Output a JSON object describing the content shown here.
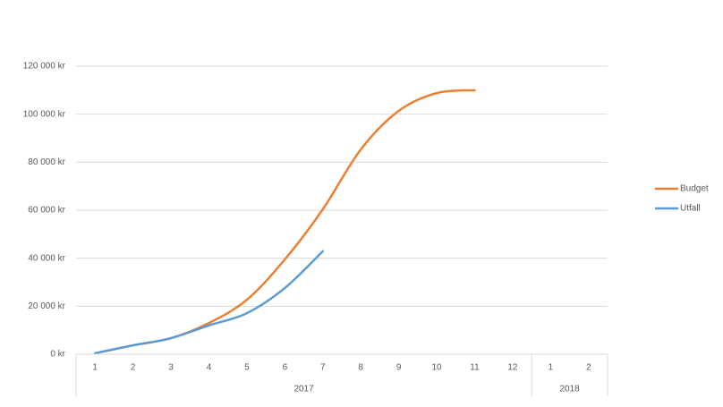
{
  "chart_data": {
    "type": "line",
    "categories": [
      "1",
      "2",
      "3",
      "4",
      "5",
      "6",
      "7",
      "8",
      "9",
      "10",
      "11",
      "12",
      "1",
      "2"
    ],
    "groups": [
      {
        "label": "2017",
        "span": 12
      },
      {
        "label": "2018",
        "span": 2
      }
    ],
    "series": [
      {
        "name": "Budget",
        "color": "#ED7D31",
        "values": [
          400,
          3700,
          6700,
          13000,
          22700,
          39500,
          60400,
          85300,
          101400,
          108800,
          110000,
          null,
          null,
          null
        ]
      },
      {
        "name": "Utfall",
        "color": "#5B9BD5",
        "values": [
          400,
          3700,
          6700,
          12000,
          17100,
          27600,
          42900,
          null,
          null,
          null,
          null,
          null,
          null,
          null
        ]
      }
    ],
    "ylim": [
      0,
      120000
    ],
    "yticks": [
      {
        "value": 0,
        "label": "0 kr"
      },
      {
        "value": 20000,
        "label": "20 000 kr"
      },
      {
        "value": 40000,
        "label": "40 000 kr"
      },
      {
        "value": 60000,
        "label": "60 000 kr"
      },
      {
        "value": 80000,
        "label": "80 000 kr"
      },
      {
        "value": 100000,
        "label": "100 000 kr"
      },
      {
        "value": 120000,
        "label": "120 000 kr"
      }
    ],
    "grid": true,
    "legend": "right"
  }
}
